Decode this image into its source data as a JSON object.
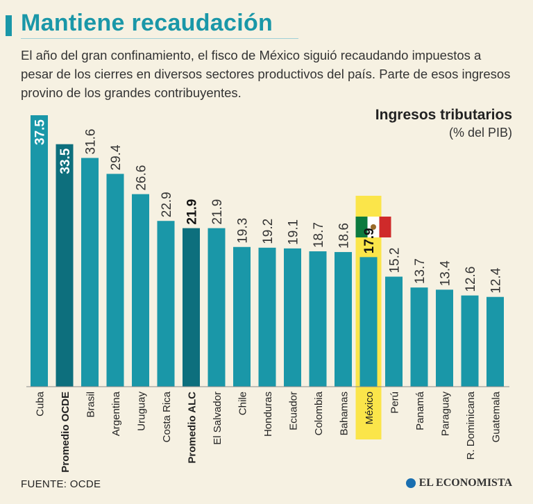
{
  "header": {
    "title": "Mantiene recaudación",
    "subtitle": "El año del gran confinamiento, el fisco de México siguió recaudando impuestos a pesar de los cierres en diversos sectores productivos del país. Parte de esos ingresos provino de los grandes contribuyentes."
  },
  "chart_data": {
    "type": "bar",
    "title": "Ingresos tributarios",
    "ylabel": "(% del PIB)",
    "xlabel": "",
    "ylim": [
      0,
      37.5
    ],
    "categories": [
      "Cuba",
      "Promedio OCDE",
      "Brasil",
      "Argentina",
      "Uruguay",
      "Costa Rica",
      "Promedio ALC",
      "El Salvador",
      "Chile",
      "Honduras",
      "Ecuador",
      "Colombia",
      "Bahamas",
      "México",
      "Perú",
      "Panamá",
      "Paraguay",
      "R. Dominicana",
      "Guatemala"
    ],
    "values": [
      37.5,
      33.5,
      31.6,
      29.4,
      26.6,
      22.9,
      21.9,
      21.9,
      19.3,
      19.2,
      19.1,
      18.7,
      18.6,
      17.9,
      15.2,
      13.7,
      13.4,
      12.6,
      12.4
    ],
    "value_labels": [
      "37.5",
      "33.5",
      "31.6",
      "29.4",
      "26.6",
      "22.9",
      "21.9",
      "21.9",
      "19.3",
      "19.2",
      "19.1",
      "18.7",
      "18.6",
      "17.9",
      "15.2",
      "13.7",
      "13.4",
      "12.6",
      "12.4"
    ],
    "emphasized": [
      "Promedio OCDE",
      "Promedio ALC",
      "México"
    ],
    "highlighted": "México",
    "grid": false,
    "legend": "none"
  },
  "colors": {
    "bar": "#1a97a8",
    "bar_average": "#0d6f7d",
    "highlight": "#fbe54a",
    "text": "#222222"
  },
  "footer": {
    "source": "FUENTE:  OCDE",
    "brand": "EL ECONOMISTA"
  }
}
